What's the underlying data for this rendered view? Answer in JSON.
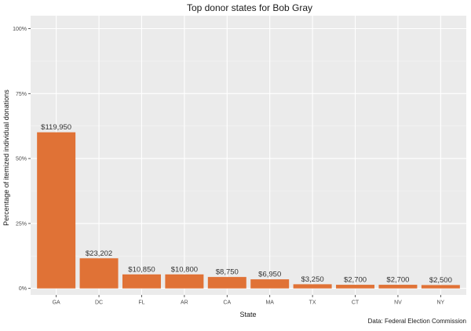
{
  "chart_data": {
    "type": "bar",
    "title": "Top donor states for Bob Gray",
    "xlabel": "State",
    "ylabel": "Percentage of itemized individual donations",
    "caption": "Data: Federal Election Commission",
    "ylim": [
      0,
      100
    ],
    "y_ticks": [
      "0%",
      "25%",
      "50%",
      "75%",
      "100%"
    ],
    "y_tick_values": [
      0,
      25,
      50,
      75,
      100
    ],
    "categories": [
      "GA",
      "DC",
      "FL",
      "AR",
      "CA",
      "MA",
      "TX",
      "CT",
      "NV",
      "NY"
    ],
    "values": [
      60.1,
      11.6,
      5.4,
      5.4,
      4.4,
      3.5,
      1.6,
      1.4,
      1.4,
      1.3
    ],
    "data_labels": [
      "$119,950",
      "$23,202",
      "$10,850",
      "$10,800",
      "$8,750",
      "$6,950",
      "$3,250",
      "$2,700",
      "$2,700",
      "$2,500"
    ],
    "grid": true,
    "colors": {
      "bar": "#E07236",
      "panel": "#EBEBEB",
      "grid_major": "#FFFFFF",
      "grid_minor": "#F5F5F5"
    }
  }
}
